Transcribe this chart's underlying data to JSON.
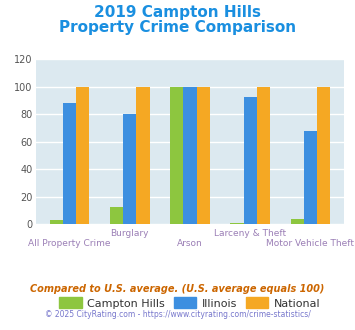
{
  "title_line1": "2019 Campton Hills",
  "title_line2": "Property Crime Comparison",
  "title_color": "#1a8fe0",
  "categories": [
    "All Property Crime",
    "Burglary",
    "Arson",
    "Larceny & Theft",
    "Motor Vehicle Theft"
  ],
  "campton_hills": [
    3,
    13,
    100,
    1,
    4
  ],
  "illinois": [
    88,
    80,
    100,
    93,
    68
  ],
  "national": [
    100,
    100,
    100,
    100,
    100
  ],
  "colors": {
    "campton_hills": "#8dc63f",
    "illinois": "#3d8fe0",
    "national": "#f5a823"
  },
  "ylim": [
    0,
    120
  ],
  "yticks": [
    0,
    20,
    40,
    60,
    80,
    100,
    120
  ],
  "bar_width": 0.22,
  "bg_color": "#dce9f0",
  "grid_color": "#ffffff",
  "upper_xlabel_color": "#9b7fb6",
  "lower_xlabel_color": "#9b7fb6",
  "legend_labels": [
    "Campton Hills",
    "Illinois",
    "National"
  ],
  "footnote": "Compared to U.S. average. (U.S. average equals 100)",
  "footnote2": "© 2025 CityRating.com - https://www.cityrating.com/crime-statistics/",
  "footnote_color": "#cc6600",
  "footnote2_color": "#7777cc"
}
